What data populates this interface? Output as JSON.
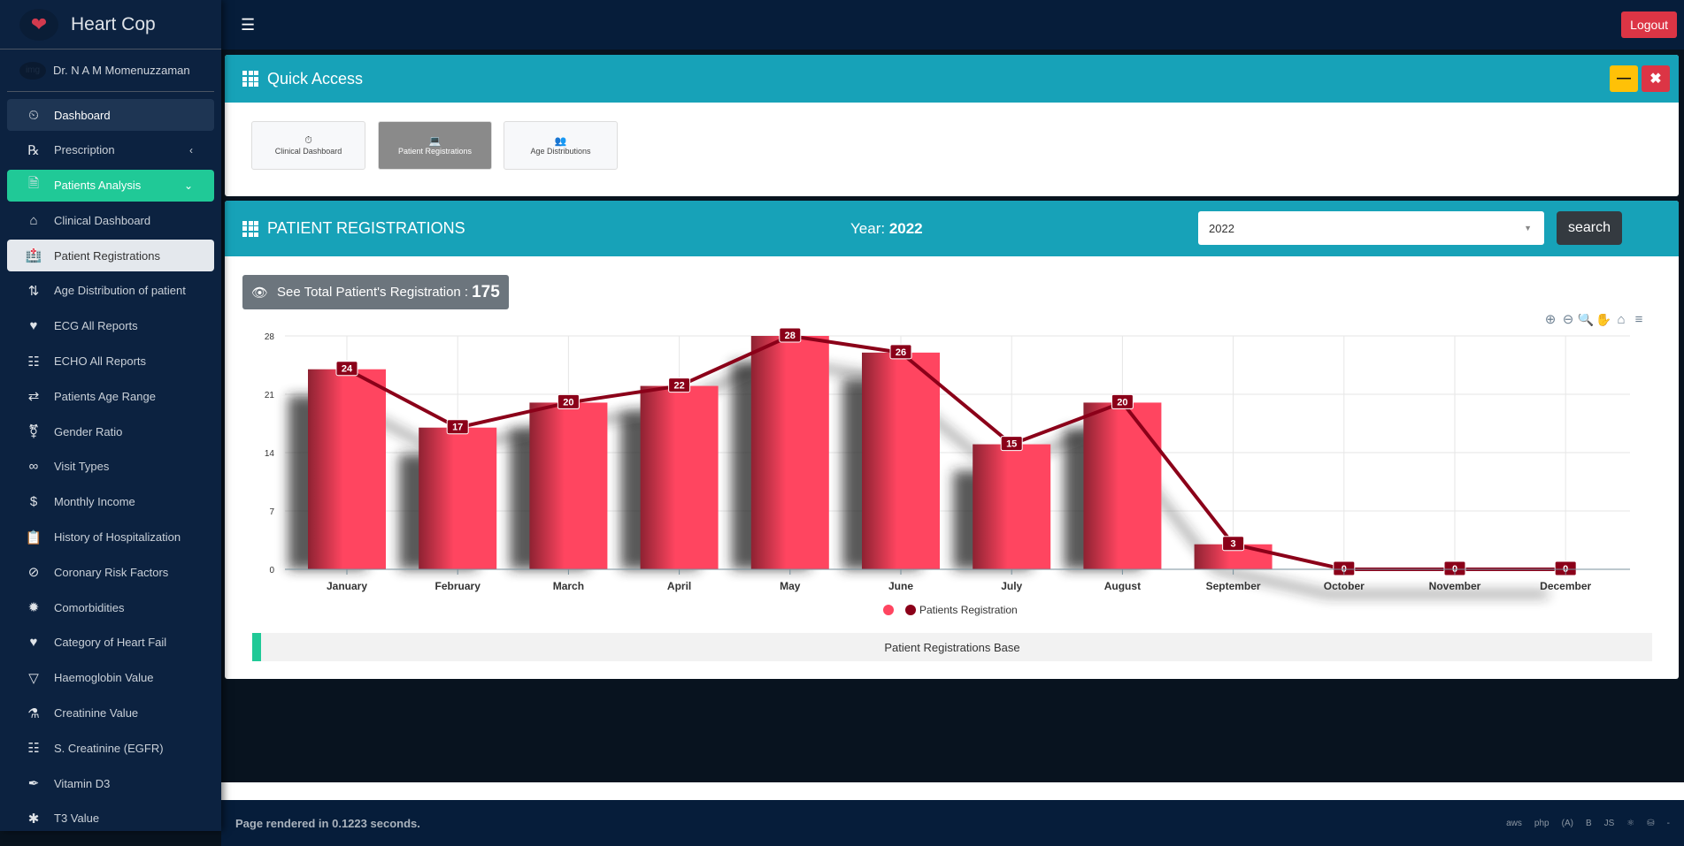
{
  "brand": {
    "name": "Heart Cop",
    "logo": "heart-logo"
  },
  "user": {
    "name": "Dr. N A M Momenuzzaman",
    "avatar_alt": "img"
  },
  "sidebar": {
    "items": [
      {
        "label": "Dashboard",
        "icon": "tachometer-icon"
      },
      {
        "label": "Prescription",
        "icon": "prescription-icon"
      },
      {
        "label": "Patients Analysis",
        "icon": "file-medical-icon"
      },
      {
        "label": "Clinical Dashboard",
        "icon": "clinic-icon"
      },
      {
        "label": "Patient Registrations",
        "icon": "hospital-user-icon"
      },
      {
        "label": "Age Distribution of patient",
        "icon": "sort-icon"
      },
      {
        "label": "ECG All Reports",
        "icon": "heartbeat-icon"
      },
      {
        "label": "ECHO All Reports",
        "icon": "project-diagram-icon"
      },
      {
        "label": "Patients Age Range",
        "icon": "exchange-icon"
      },
      {
        "label": "Gender Ratio",
        "icon": "transgender-icon"
      },
      {
        "label": "Visit Types",
        "icon": "glasses-icon"
      },
      {
        "label": "Monthly Income",
        "icon": "dollar-icon"
      },
      {
        "label": "History of Hospitalization",
        "icon": "clipboard-icon"
      },
      {
        "label": "Coronary Risk Factors",
        "icon": "ban-icon"
      },
      {
        "label": "Comorbidities",
        "icon": "virus-icon"
      },
      {
        "label": "Category of Heart Fail",
        "icon": "heartbeat-icon"
      },
      {
        "label": "Haemoglobin Value",
        "icon": "gitlab-icon"
      },
      {
        "label": "Creatinine Value",
        "icon": "flask-icon"
      },
      {
        "label": "S. Creatinine (EGFR)",
        "icon": "sitemap-icon"
      },
      {
        "label": "Vitamin D3",
        "icon": "eye-dropper-icon"
      },
      {
        "label": "T3 Value",
        "icon": "asterisk-icon"
      }
    ]
  },
  "topbar": {
    "logout": "Logout"
  },
  "quick_access": {
    "title": "Quick Access",
    "tiles": [
      {
        "label": "Clinical Dashboard",
        "icon": "tachometer-icon"
      },
      {
        "label": "Patient Registrations",
        "icon": "laptop-icon"
      },
      {
        "label": "Age Distributions",
        "icon": "users-icon"
      }
    ]
  },
  "registrations": {
    "title": "PATIENT REGISTRATIONS",
    "year_label": "Year:",
    "year": "2022",
    "select_value": "2022",
    "search": "search",
    "total_label": "See Total Patient's Registration :",
    "total": "175",
    "base_label": "Patient Registrations Base"
  },
  "chart_data": {
    "type": "bar",
    "categories": [
      "January",
      "February",
      "March",
      "April",
      "May",
      "June",
      "July",
      "August",
      "September",
      "October",
      "November",
      "December"
    ],
    "series": [
      {
        "type": "bar",
        "values": [
          24,
          17,
          20,
          22,
          28,
          26,
          15,
          20,
          3,
          0,
          0,
          0
        ],
        "color": "#ff4560"
      },
      {
        "name": "Patients Registration",
        "type": "line",
        "values": [
          24,
          17,
          20,
          22,
          28,
          26,
          15,
          20,
          3,
          0,
          0,
          0
        ],
        "color": "#8b0019"
      }
    ],
    "ylim": [
      0,
      28
    ],
    "yticks": [
      0,
      7,
      14,
      21,
      28
    ],
    "grid": true,
    "legend": "bottom"
  },
  "footer": {
    "rendered_prefix": "Page rendered in",
    "time": "0.1223",
    "suffix": "seconds.",
    "icons": [
      "aws",
      "php",
      "angular",
      "bootstrap",
      "js",
      "react",
      "database",
      "-"
    ]
  }
}
